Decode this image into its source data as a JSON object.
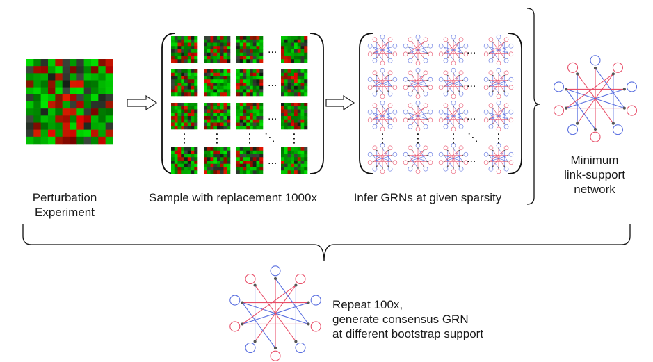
{
  "labels": {
    "perturbation": [
      "Perturbation",
      "Experiment"
    ],
    "sample": "Sample with replacement 1000x",
    "infer": "Infer GRNs at given sparsity",
    "minimum": [
      "Minimum",
      "link-support",
      "network"
    ],
    "repeat": [
      "Repeat 100x,",
      "generate consensus GRN",
      "at different bootstrap support"
    ]
  },
  "ellipsis": {
    "horizontal": "...",
    "vertical": "⋮",
    "diagonal": "⋱"
  },
  "colors": {
    "heatmap_green": "#1fbf1f",
    "heatmap_red": "#d91a1a",
    "heatmap_dark": "#111111",
    "network_red": "#e8506a",
    "network_blue": "#5a6fe0",
    "line": "#222222"
  }
}
